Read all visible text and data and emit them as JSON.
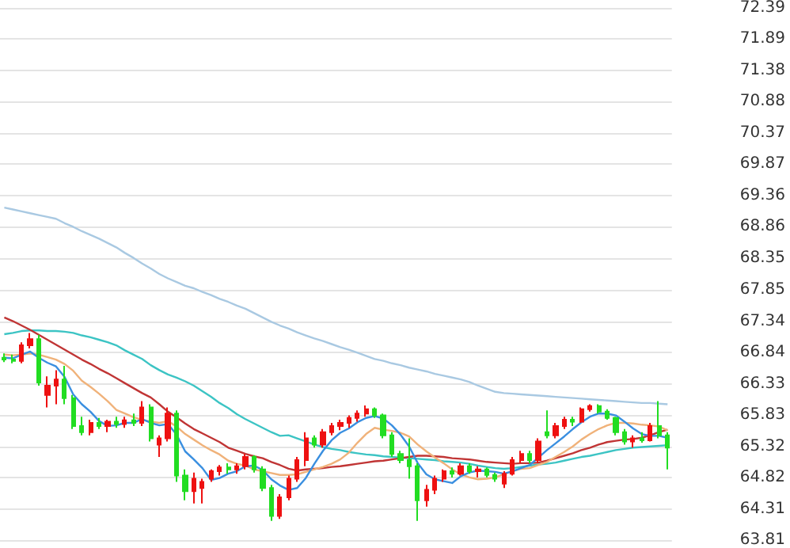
{
  "chart_data": {
    "type": "candlestick",
    "categories": [
      null,
      null,
      null,
      null,
      null,
      null,
      null,
      null,
      null,
      null,
      null,
      null,
      null,
      null,
      null,
      null,
      null,
      null,
      null,
      null,
      null,
      null,
      null,
      null,
      null,
      null,
      null,
      null,
      null,
      null,
      null,
      null,
      null,
      null,
      null,
      null,
      null,
      null,
      null,
      null,
      null,
      null,
      null,
      null,
      null,
      null,
      null,
      null,
      null,
      null,
      null,
      null,
      null,
      null,
      null,
      null,
      null,
      null,
      null,
      null,
      null,
      null,
      null,
      null,
      null,
      null,
      null,
      null,
      null,
      null,
      null,
      null,
      null,
      null,
      null,
      null,
      null,
      null
    ],
    "ohlc": [
      [
        66.75,
        66.82,
        66.68,
        66.72
      ],
      [
        66.72,
        66.8,
        66.66,
        66.7
      ],
      [
        66.7,
        67.0,
        66.66,
        66.95
      ],
      [
        66.95,
        67.15,
        66.9,
        67.05
      ],
      [
        67.05,
        67.12,
        66.3,
        66.35
      ],
      [
        66.15,
        66.45,
        65.95,
        66.3
      ],
      [
        66.3,
        66.55,
        66.0,
        66.4
      ],
      [
        66.4,
        66.62,
        66.0,
        66.1
      ],
      [
        66.1,
        66.15,
        65.6,
        65.65
      ],
      [
        65.65,
        65.8,
        65.5,
        65.55
      ],
      [
        65.55,
        65.75,
        65.5,
        65.7
      ],
      [
        65.7,
        65.78,
        65.6,
        65.65
      ],
      [
        65.65,
        65.75,
        65.55,
        65.72
      ],
      [
        65.72,
        65.8,
        65.62,
        65.68
      ],
      [
        65.68,
        65.8,
        65.62,
        65.74
      ],
      [
        65.74,
        65.85,
        65.65,
        65.7
      ],
      [
        65.7,
        66.05,
        65.65,
        65.95
      ],
      [
        65.95,
        66.0,
        65.4,
        65.45
      ],
      [
        65.35,
        65.5,
        65.15,
        65.45
      ],
      [
        65.45,
        65.95,
        65.4,
        65.85
      ],
      [
        65.85,
        65.9,
        64.75,
        64.85
      ],
      [
        64.85,
        64.95,
        64.45,
        64.6
      ],
      [
        64.6,
        64.9,
        64.4,
        64.8
      ],
      [
        64.65,
        64.8,
        64.4,
        64.75
      ],
      [
        64.8,
        64.95,
        64.75,
        64.92
      ],
      [
        64.92,
        65.02,
        64.85,
        64.98
      ],
      [
        64.98,
        65.05,
        64.88,
        64.95
      ],
      [
        64.95,
        65.05,
        64.88,
        65.0
      ],
      [
        65.0,
        65.2,
        64.95,
        65.15
      ],
      [
        65.15,
        65.18,
        64.9,
        64.95
      ],
      [
        64.95,
        65.0,
        64.6,
        64.65
      ],
      [
        64.65,
        64.7,
        64.12,
        64.2
      ],
      [
        64.2,
        64.55,
        64.15,
        64.5
      ],
      [
        64.5,
        64.85,
        64.45,
        64.8
      ],
      [
        64.8,
        65.15,
        64.75,
        65.1
      ],
      [
        65.1,
        65.55,
        65.0,
        65.45
      ],
      [
        65.45,
        65.5,
        65.3,
        65.35
      ],
      [
        65.35,
        65.6,
        65.3,
        65.55
      ],
      [
        65.55,
        65.7,
        65.5,
        65.65
      ],
      [
        65.65,
        65.75,
        65.58,
        65.7
      ],
      [
        65.7,
        65.82,
        65.62,
        65.78
      ],
      [
        65.78,
        65.9,
        65.72,
        65.85
      ],
      [
        65.85,
        65.98,
        65.8,
        65.92
      ],
      [
        65.92,
        65.95,
        65.78,
        65.82
      ],
      [
        65.82,
        65.85,
        65.45,
        65.5
      ],
      [
        65.5,
        65.55,
        65.15,
        65.2
      ],
      [
        65.2,
        65.25,
        65.05,
        65.1
      ],
      [
        65.1,
        65.45,
        64.8,
        65.0
      ],
      [
        65.0,
        65.05,
        64.12,
        64.45
      ],
      [
        64.45,
        64.7,
        64.35,
        64.62
      ],
      [
        64.62,
        64.85,
        64.55,
        64.8
      ],
      [
        64.8,
        64.95,
        64.75,
        64.92
      ],
      [
        64.92,
        64.98,
        64.82,
        64.88
      ],
      [
        64.88,
        65.05,
        64.85,
        65.0
      ],
      [
        65.0,
        65.05,
        64.88,
        64.92
      ],
      [
        64.92,
        65.0,
        64.82,
        64.95
      ],
      [
        64.95,
        64.98,
        64.82,
        64.86
      ],
      [
        64.86,
        64.9,
        64.75,
        64.8
      ],
      [
        64.72,
        64.92,
        64.65,
        64.88
      ],
      [
        64.88,
        65.15,
        64.85,
        65.1
      ],
      [
        65.1,
        65.25,
        65.05,
        65.2
      ],
      [
        65.2,
        65.25,
        65.05,
        65.1
      ],
      [
        65.1,
        65.45,
        65.05,
        65.4
      ],
      [
        65.55,
        65.9,
        65.45,
        65.5
      ],
      [
        65.5,
        65.7,
        65.45,
        65.65
      ],
      [
        65.65,
        65.8,
        65.6,
        65.75
      ],
      [
        65.75,
        65.8,
        65.65,
        65.72
      ],
      [
        65.72,
        65.95,
        65.7,
        65.92
      ],
      [
        65.92,
        66.0,
        65.88,
        65.97
      ],
      [
        65.97,
        66.0,
        65.85,
        65.88
      ],
      [
        65.88,
        65.92,
        65.75,
        65.78
      ],
      [
        65.78,
        65.8,
        65.5,
        65.55
      ],
      [
        65.55,
        65.6,
        65.35,
        65.4
      ],
      [
        65.4,
        65.5,
        65.3,
        65.45
      ],
      [
        65.45,
        65.55,
        65.38,
        65.42
      ],
      [
        65.42,
        65.7,
        65.4,
        65.65
      ],
      [
        65.65,
        66.05,
        65.45,
        65.5
      ],
      [
        65.5,
        65.55,
        64.95,
        65.3
      ]
    ],
    "colors": [
      "#22dd22",
      "#22dd22",
      "#ee1111",
      "#ee1111",
      "#22dd22",
      "#ee1111",
      "#ee1111",
      "#22dd22",
      "#22dd22",
      "#22dd22",
      "#ee1111",
      "#22dd22",
      "#ee1111",
      "#22dd22",
      "#ee1111",
      "#22dd22",
      "#ee1111",
      "#22dd22",
      "#ee1111",
      "#ee1111",
      "#22dd22",
      "#22dd22",
      "#ee1111",
      "#ee1111",
      "#ee1111",
      "#ee1111",
      "#22dd22",
      "#ee1111",
      "#ee1111",
      "#22dd22",
      "#22dd22",
      "#22dd22",
      "#ee1111",
      "#ee1111",
      "#ee1111",
      "#ee1111",
      "#22dd22",
      "#ee1111",
      "#ee1111",
      "#ee1111",
      "#ee1111",
      "#ee1111",
      "#ee1111",
      "#22dd22",
      "#22dd22",
      "#22dd22",
      "#22dd22",
      "#22dd22",
      "#22dd22",
      "#ee1111",
      "#ee1111",
      "#ee1111",
      "#22dd22",
      "#ee1111",
      "#22dd22",
      "#ee1111",
      "#22dd22",
      "#22dd22",
      "#ee1111",
      "#ee1111",
      "#ee1111",
      "#22dd22",
      "#ee1111",
      "#22dd22",
      "#ee1111",
      "#ee1111",
      "#22dd22",
      "#ee1111",
      "#ee1111",
      "#22dd22",
      "#22dd22",
      "#22dd22",
      "#22dd22",
      "#ee1111",
      "#22dd22",
      "#ee1111",
      "#22dd22",
      "#22dd22"
    ],
    "series": [
      {
        "type": "line",
        "color": "#a9c9e2",
        "values": [
          69.17,
          69.14,
          69.11,
          69.08,
          69.05,
          69.02,
          68.99,
          68.92,
          68.86,
          68.79,
          68.73,
          68.67,
          68.6,
          68.53,
          68.44,
          68.36,
          68.27,
          68.19,
          68.1,
          68.03,
          67.97,
          67.91,
          67.87,
          67.81,
          67.76,
          67.7,
          67.65,
          67.59,
          67.54,
          67.47,
          67.4,
          67.33,
          67.27,
          67.22,
          67.16,
          67.11,
          67.06,
          67.02,
          66.97,
          66.92,
          66.88,
          66.83,
          66.78,
          66.73,
          66.7,
          66.66,
          66.63,
          66.59,
          66.56,
          66.53,
          66.49,
          66.46,
          66.43,
          66.4,
          66.36,
          66.3,
          66.25,
          66.2,
          66.18,
          66.17,
          66.16,
          66.15,
          66.14,
          66.13,
          66.12,
          66.11,
          66.1,
          66.09,
          66.08,
          66.07,
          66.06,
          66.05,
          66.04,
          66.03,
          66.02,
          66.02,
          66.01,
          66.0
        ]
      },
      {
        "type": "line",
        "color": "#3cc4c4",
        "values": [
          67.13,
          67.15,
          67.18,
          67.19,
          67.19,
          67.18,
          67.18,
          67.17,
          67.15,
          67.11,
          67.08,
          67.04,
          67.0,
          66.95,
          66.87,
          66.8,
          66.73,
          66.63,
          66.55,
          66.48,
          66.43,
          66.37,
          66.3,
          66.21,
          66.12,
          66.02,
          65.94,
          65.84,
          65.76,
          65.69,
          65.62,
          65.55,
          65.49,
          65.5,
          65.45,
          65.4,
          65.35,
          65.31,
          65.28,
          65.26,
          65.23,
          65.21,
          65.19,
          65.18,
          65.16,
          65.15,
          65.14,
          65.13,
          65.12,
          65.11,
          65.1,
          65.08,
          65.07,
          65.06,
          65.04,
          65.01,
          64.99,
          64.97,
          64.96,
          64.97,
          64.99,
          65.01,
          65.03,
          65.04,
          65.06,
          65.09,
          65.12,
          65.15,
          65.17,
          65.2,
          65.23,
          65.26,
          65.28,
          65.3,
          65.31,
          65.32,
          65.33,
          65.34
        ]
      },
      {
        "type": "line",
        "color": "#c03535",
        "values": [
          67.4,
          67.34,
          67.27,
          67.2,
          67.12,
          67.04,
          66.96,
          66.88,
          66.8,
          66.72,
          66.65,
          66.57,
          66.5,
          66.42,
          66.34,
          66.26,
          66.18,
          66.11,
          66.0,
          65.88,
          65.79,
          65.69,
          65.6,
          65.53,
          65.46,
          65.39,
          65.3,
          65.25,
          65.2,
          65.16,
          65.13,
          65.07,
          65.02,
          64.96,
          64.93,
          64.95,
          64.96,
          64.97,
          64.99,
          65.0,
          65.02,
          65.04,
          65.06,
          65.08,
          65.09,
          65.11,
          65.13,
          65.15,
          65.17,
          65.17,
          65.16,
          65.15,
          65.13,
          65.12,
          65.11,
          65.09,
          65.07,
          65.06,
          65.05,
          65.04,
          65.05,
          65.05,
          65.06,
          65.09,
          65.13,
          65.17,
          65.21,
          65.26,
          65.3,
          65.35,
          65.39,
          65.41,
          65.43,
          65.44,
          65.46,
          65.5,
          65.55,
          65.59
        ]
      },
      {
        "type": "line",
        "color": "#f0b27a",
        "values": [
          66.8,
          66.79,
          66.8,
          66.82,
          66.8,
          66.76,
          66.72,
          66.65,
          66.54,
          66.38,
          66.28,
          66.17,
          66.05,
          65.91,
          65.85,
          65.79,
          65.75,
          65.72,
          65.7,
          65.73,
          65.64,
          65.52,
          65.43,
          65.34,
          65.26,
          65.19,
          65.09,
          65.04,
          65.01,
          64.95,
          64.92,
          64.89,
          64.86,
          64.86,
          64.87,
          64.91,
          64.95,
          64.99,
          65.04,
          65.11,
          65.22,
          65.38,
          65.52,
          65.62,
          65.59,
          65.57,
          65.54,
          65.48,
          65.35,
          65.24,
          65.14,
          65.05,
          64.95,
          64.87,
          64.82,
          64.79,
          64.8,
          64.82,
          64.87,
          64.92,
          64.96,
          64.97,
          65.02,
          65.07,
          65.15,
          65.23,
          65.32,
          65.43,
          65.52,
          65.6,
          65.66,
          65.7,
          65.7,
          65.69,
          65.67,
          65.66,
          65.64,
          65.58
        ]
      },
      {
        "type": "line",
        "color": "#3a8fe0",
        "values": [
          66.75,
          66.74,
          66.8,
          66.85,
          66.75,
          66.67,
          66.61,
          66.44,
          66.16,
          66.0,
          65.88,
          65.73,
          65.65,
          65.66,
          65.7,
          65.7,
          65.76,
          65.7,
          65.66,
          65.68,
          65.51,
          65.24,
          65.11,
          64.97,
          64.78,
          64.81,
          64.88,
          64.92,
          65.0,
          65.01,
          64.94,
          64.79,
          64.69,
          64.62,
          64.65,
          64.81,
          65.04,
          65.25,
          65.42,
          65.54,
          65.61,
          65.71,
          65.78,
          65.81,
          65.77,
          65.66,
          65.51,
          65.32,
          65.05,
          64.87,
          64.79,
          64.76,
          64.73,
          64.84,
          64.9,
          64.93,
          64.92,
          64.91,
          64.88,
          64.92,
          64.97,
          65.02,
          65.14,
          65.26,
          65.37,
          65.48,
          65.6,
          65.71,
          65.8,
          65.85,
          65.85,
          65.82,
          65.72,
          65.61,
          65.52,
          65.49,
          65.49,
          65.46
        ]
      }
    ],
    "ylim": [
      63.81,
      72.39
    ],
    "yticks": [
      63.81,
      64.31,
      64.82,
      65.32,
      65.83,
      66.33,
      66.84,
      67.34,
      67.85,
      68.35,
      68.86,
      69.36,
      69.87,
      70.37,
      70.88,
      71.38,
      71.89,
      72.39
    ],
    "grid": "y",
    "tick_labels": "y"
  }
}
